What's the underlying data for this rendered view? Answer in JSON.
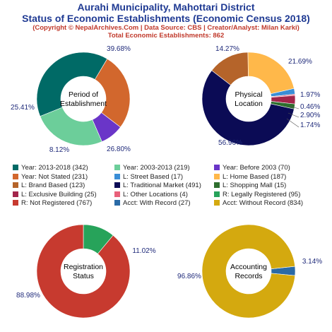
{
  "header": {
    "title_line1": "Aurahi Municipality, Mahottari District",
    "title_line2": "Status of Economic Establishments (Economic Census 2018)",
    "subtitle_line1": "(Copyright © NepalArchives.Com | Data Source: CBS | Creator/Analyst: Milan Karki)",
    "subtitle_line2": "Total Economic Establishments: 862"
  },
  "chart_data": [
    {
      "type": "pie",
      "center_label": [
        "Period of",
        "Establishment"
      ],
      "slices": [
        {
          "label": "Year: 2013-2018",
          "value": 342,
          "pct_label": "39.68%",
          "color": "#006a66"
        },
        {
          "label": "Year: Not Stated",
          "value": 231,
          "pct_label": "26.80%",
          "color": "#d2672d"
        },
        {
          "label": "Year: Before 2003",
          "value": 70,
          "pct_label": "8.12%",
          "color": "#6a35c8"
        },
        {
          "label": "Year: 2003-2013",
          "value": 219,
          "pct_label": "25.41%",
          "color": "#6cce9a"
        }
      ]
    },
    {
      "type": "pie",
      "center_label": [
        "Physical",
        "Location"
      ],
      "slices": [
        {
          "label": "L: Home Based",
          "value": 187,
          "pct_label": "21.69%",
          "color": "#ffb84a"
        },
        {
          "label": "L: Street Based",
          "value": 17,
          "pct_label": "1.97%",
          "color": "#3a8ed6"
        },
        {
          "label": "L: Other Locations",
          "value": 4,
          "pct_label": "0.46%",
          "color": "#e8607a"
        },
        {
          "label": "L: Exclusive Building",
          "value": 25,
          "pct_label": "2.90%",
          "color": "#a3254a"
        },
        {
          "label": "L: Shopping Mall",
          "value": 15,
          "pct_label": "1.74%",
          "color": "#2e6e2e"
        },
        {
          "label": "L: Traditional Market",
          "value": 491,
          "pct_label": "56.96%",
          "color": "#0b0b55"
        },
        {
          "label": "L: Brand Based",
          "value": 123,
          "pct_label": "14.27%",
          "color": "#b5642a"
        }
      ]
    },
    {
      "type": "pie",
      "center_label": [
        "Registration",
        "Status"
      ],
      "slices": [
        {
          "label": "R: Legally Registered",
          "value": 95,
          "pct_label": "11.02%",
          "color": "#27a35a"
        },
        {
          "label": "R: Not Registered",
          "value": 767,
          "pct_label": "88.98%",
          "color": "#c73a2f"
        }
      ]
    },
    {
      "type": "pie",
      "center_label": [
        "Accounting",
        "Records"
      ],
      "slices": [
        {
          "label": "Acct: With Record",
          "value": 27,
          "pct_label": "3.14%",
          "color": "#2a6aa6"
        },
        {
          "label": "Acct: Without Record",
          "value": 834,
          "pct_label": "96.86%",
          "color": "#d4a90f"
        }
      ]
    }
  ],
  "legend": [
    {
      "text": "Year: 2013-2018 (342)",
      "color": "#006a66"
    },
    {
      "text": "Year: 2003-2013 (219)",
      "color": "#6cce9a"
    },
    {
      "text": "Year: Before 2003 (70)",
      "color": "#6a35c8"
    },
    {
      "text": "Year: Not Stated (231)",
      "color": "#d2672d"
    },
    {
      "text": "L: Street Based (17)",
      "color": "#3a8ed6"
    },
    {
      "text": "L: Home Based (187)",
      "color": "#ffb84a"
    },
    {
      "text": "L: Brand Based (123)",
      "color": "#b5642a"
    },
    {
      "text": "L: Traditional Market (491)",
      "color": "#0b0b55"
    },
    {
      "text": "L: Shopping Mall (15)",
      "color": "#2e6e2e"
    },
    {
      "text": "L: Exclusive Building (25)",
      "color": "#a3254a"
    },
    {
      "text": "L: Other Locations (4)",
      "color": "#e8607a"
    },
    {
      "text": "R: Legally Registered (95)",
      "color": "#27a35a"
    },
    {
      "text": "R: Not Registered (767)",
      "color": "#c73a2f"
    },
    {
      "text": "Acct: With Record (27)",
      "color": "#2a6aa6"
    },
    {
      "text": "Acct: Without Record (834)",
      "color": "#d4a90f"
    }
  ]
}
